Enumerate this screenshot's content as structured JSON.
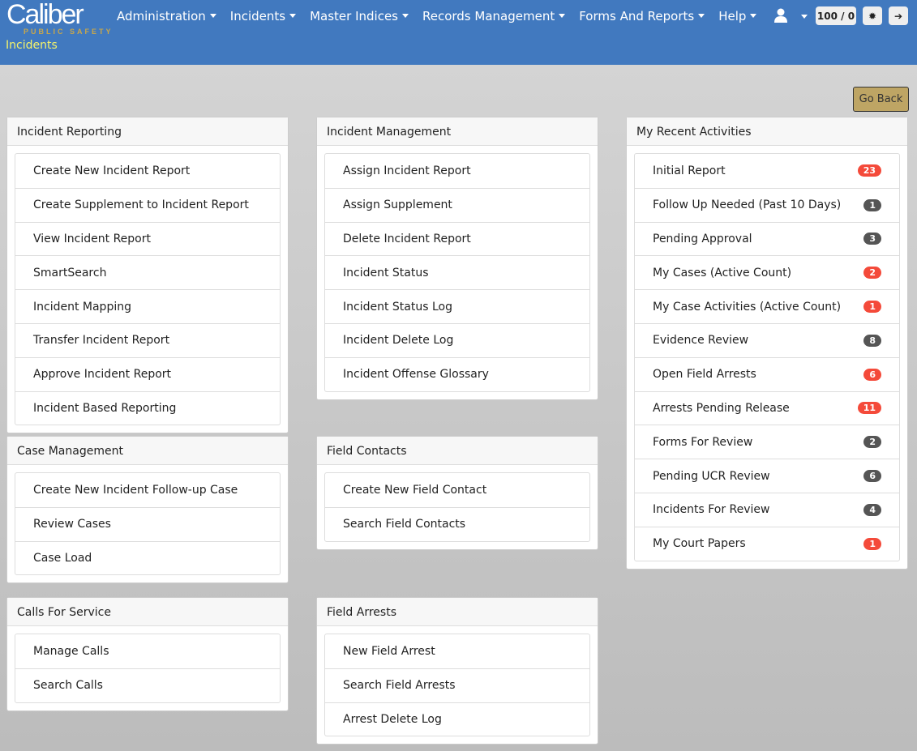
{
  "header": {
    "logo_text": "Caliber",
    "logo_sub": "PUBLIC SAFETY",
    "nav": [
      "Administration",
      "Incidents",
      "Master Indices",
      "Records Management",
      "Forms And Reports",
      "Help"
    ],
    "breadcrumb": "Incidents",
    "counter": "100 / 0",
    "icons": [
      "user-icon",
      "gear-icon",
      "logout-icon"
    ]
  },
  "go_back": "Go Back",
  "colors": {
    "header": "#4179bf",
    "badge_red": "#f44a3a",
    "badge_dark": "#555555",
    "go_back": "#bea564"
  },
  "incident_reporting": {
    "title": "Incident Reporting",
    "items": [
      "Create New Incident Report",
      "Create Supplement to Incident Report",
      "View Incident Report",
      "SmartSearch",
      "Incident Mapping",
      "Transfer Incident Report",
      "Approve Incident Report",
      "Incident Based Reporting"
    ]
  },
  "case_management": {
    "title": "Case Management",
    "items": [
      "Create New Incident Follow-up Case",
      "Review Cases",
      "Case Load"
    ]
  },
  "calls_for_service": {
    "title": "Calls For Service",
    "items": [
      "Manage Calls",
      "Search Calls"
    ]
  },
  "incident_management": {
    "title": "Incident Management",
    "items": [
      "Assign Incident Report",
      "Assign Supplement",
      "Delete Incident Report",
      "Incident Status",
      "Incident Status Log",
      "Incident Delete Log",
      "Incident Offense Glossary"
    ]
  },
  "field_contacts": {
    "title": "Field Contacts",
    "items": [
      "Create New Field Contact",
      "Search Field Contacts"
    ]
  },
  "field_arrests": {
    "title": "Field Arrests",
    "items": [
      "New Field Arrest",
      "Search Field Arrests",
      "Arrest Delete Log"
    ]
  },
  "recent": {
    "title": "My Recent Activities",
    "items": [
      {
        "label": "Initial Report",
        "count": "23",
        "color": "red"
      },
      {
        "label": "Follow Up Needed (Past 10 Days)",
        "count": "1",
        "color": "dark"
      },
      {
        "label": "Pending Approval",
        "count": "3",
        "color": "dark"
      },
      {
        "label": "My Cases (Active Count)",
        "count": "2",
        "color": "red"
      },
      {
        "label": "My Case Activities (Active Count)",
        "count": "1",
        "color": "red"
      },
      {
        "label": "Evidence Review",
        "count": "8",
        "color": "dark"
      },
      {
        "label": "Open Field Arrests",
        "count": "6",
        "color": "red"
      },
      {
        "label": "Arrests Pending Release",
        "count": "11",
        "color": "red"
      },
      {
        "label": "Forms For Review",
        "count": "2",
        "color": "dark"
      },
      {
        "label": "Pending UCR Review",
        "count": "6",
        "color": "dark"
      },
      {
        "label": "Incidents For Review",
        "count": "4",
        "color": "dark"
      },
      {
        "label": "My Court Papers",
        "count": "1",
        "color": "red"
      }
    ]
  }
}
